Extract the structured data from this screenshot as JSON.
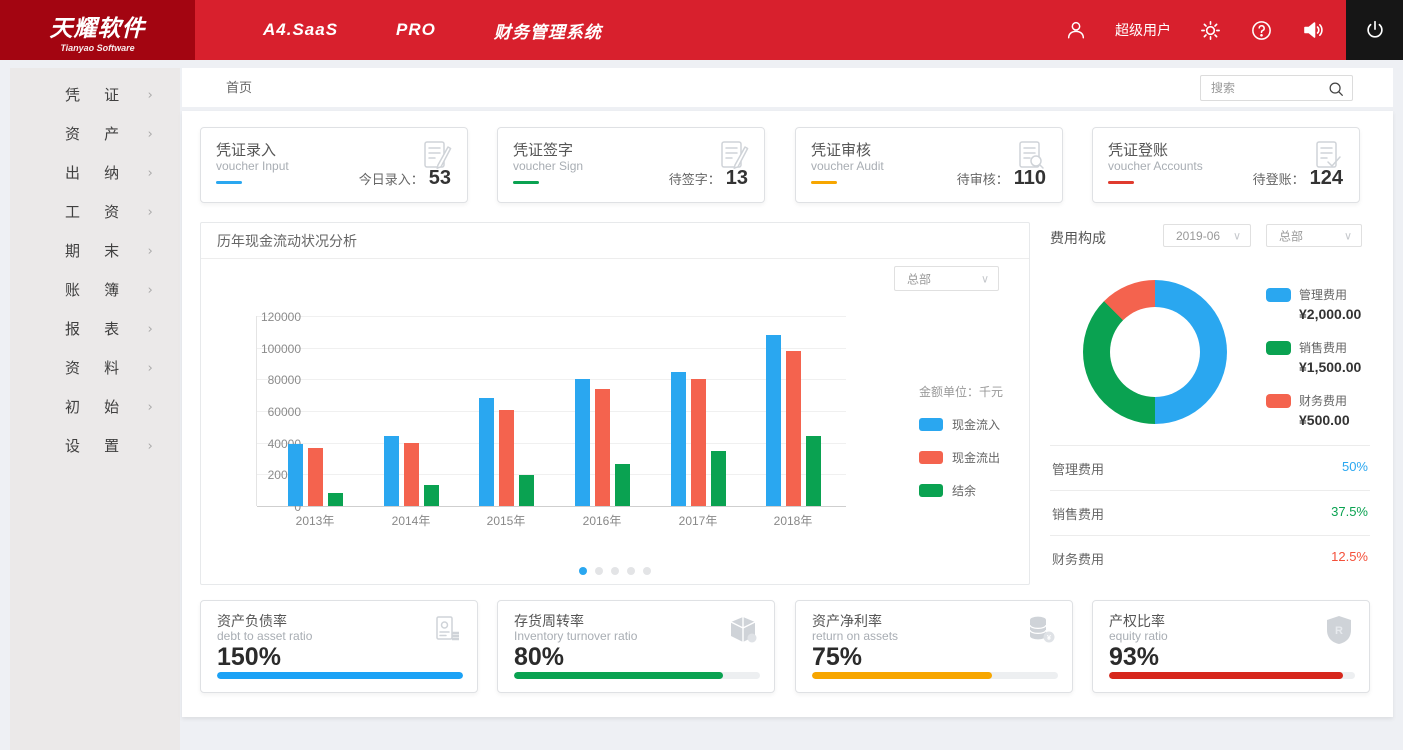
{
  "header": {
    "logo_title": "天耀软件",
    "logo_subtitle": "Tianyao Software",
    "nav": [
      {
        "label": "A4.SaaS"
      },
      {
        "label": "PRO"
      },
      {
        "label": "财务管理系统"
      }
    ],
    "user_name": "超级用户"
  },
  "sidebar": {
    "items": [
      {
        "label": "凭 证"
      },
      {
        "label": "资 产"
      },
      {
        "label": "出 纳"
      },
      {
        "label": "工 资"
      },
      {
        "label": "期 末"
      },
      {
        "label": "账 簿"
      },
      {
        "label": "报 表"
      },
      {
        "label": "资 料"
      },
      {
        "label": "初 始"
      },
      {
        "label": "设 置"
      }
    ],
    "chevron": "›"
  },
  "breadcrumb": {
    "home": "首页"
  },
  "search": {
    "placeholder": "搜索"
  },
  "voucher_cards": [
    {
      "title_cn": "凭证录入",
      "title_en": "voucher Input",
      "stat_label": "今日录入：",
      "value": "53",
      "accent": "#2aa7f0",
      "icon": "doc-pen"
    },
    {
      "title_cn": "凭证签字",
      "title_en": "voucher Sign",
      "stat_label": "待签字：",
      "value": "13",
      "accent": "#0aa251",
      "icon": "doc-pen"
    },
    {
      "title_cn": "凭证审核",
      "title_en": "voucher Audit",
      "stat_label": "待审核：",
      "value": "110",
      "accent": "#f7a600",
      "icon": "doc-audit"
    },
    {
      "title_cn": "凭证登账",
      "title_en": "voucher Accounts",
      "stat_label": "待登账：",
      "value": "124",
      "accent": "#e03b2e",
      "icon": "doc-check"
    }
  ],
  "chart_data": [
    {
      "type": "bar",
      "title": "历年现金流动状况分析",
      "filter_org": "总部",
      "unit_note": "金额单位：千元",
      "categories": [
        "2013年",
        "2014年",
        "2015年",
        "2016年",
        "2017年",
        "2018年"
      ],
      "series": [
        {
          "name": "现金流入",
          "color": "#2aa7f0",
          "values": [
            39000,
            44500,
            68500,
            80500,
            84500,
            108000
          ]
        },
        {
          "name": "现金流出",
          "color": "#f4634e",
          "values": [
            36500,
            40000,
            60500,
            74000,
            80500,
            98000
          ]
        },
        {
          "name": "结余",
          "color": "#0aa251",
          "values": [
            8500,
            13000,
            19500,
            26500,
            35000,
            44500
          ]
        }
      ],
      "ylim": [
        0,
        120000
      ],
      "ytick_step": 20000,
      "grid": true,
      "legend_position": "right",
      "pagination": {
        "count": 5,
        "active": 0,
        "active_color": "#2aa7f0"
      }
    },
    {
      "type": "pie",
      "title": "费用构成",
      "filters": {
        "period": "2019-06",
        "org": "总部"
      },
      "labels": [
        "管理费用",
        "销售费用",
        "财务费用"
      ],
      "values": [
        2000,
        1500,
        500
      ],
      "amounts": [
        "¥2,000.00",
        "¥1,500.00",
        "¥500.00"
      ],
      "percents": [
        "50%",
        "37.5%",
        "12.5%"
      ],
      "colors": [
        "#2aa7f0",
        "#0aa251",
        "#f4634e"
      ],
      "pct_colors": [
        "#2aa7f0",
        "#0aa251",
        "#f4503a"
      ]
    }
  ],
  "kpi_cards": [
    {
      "title_cn": "资产负债率",
      "title_en": "debt to asset ratio",
      "value": "150%",
      "fill_pct": 100,
      "color": "#1ba2f6",
      "icon": "certificate"
    },
    {
      "title_cn": "存货周转率",
      "title_en": "Inventory turnover ratio",
      "value": "80%",
      "fill_pct": 85,
      "color": "#0aa251",
      "icon": "box"
    },
    {
      "title_cn": "资产净利率",
      "title_en": "return on assets",
      "value": "75%",
      "fill_pct": 73,
      "color": "#f7a600",
      "icon": "coins"
    },
    {
      "title_cn": "产权比率",
      "title_en": "equity ratio",
      "value": "93%",
      "fill_pct": 95,
      "color": "#d6271c",
      "icon": "shield"
    }
  ]
}
